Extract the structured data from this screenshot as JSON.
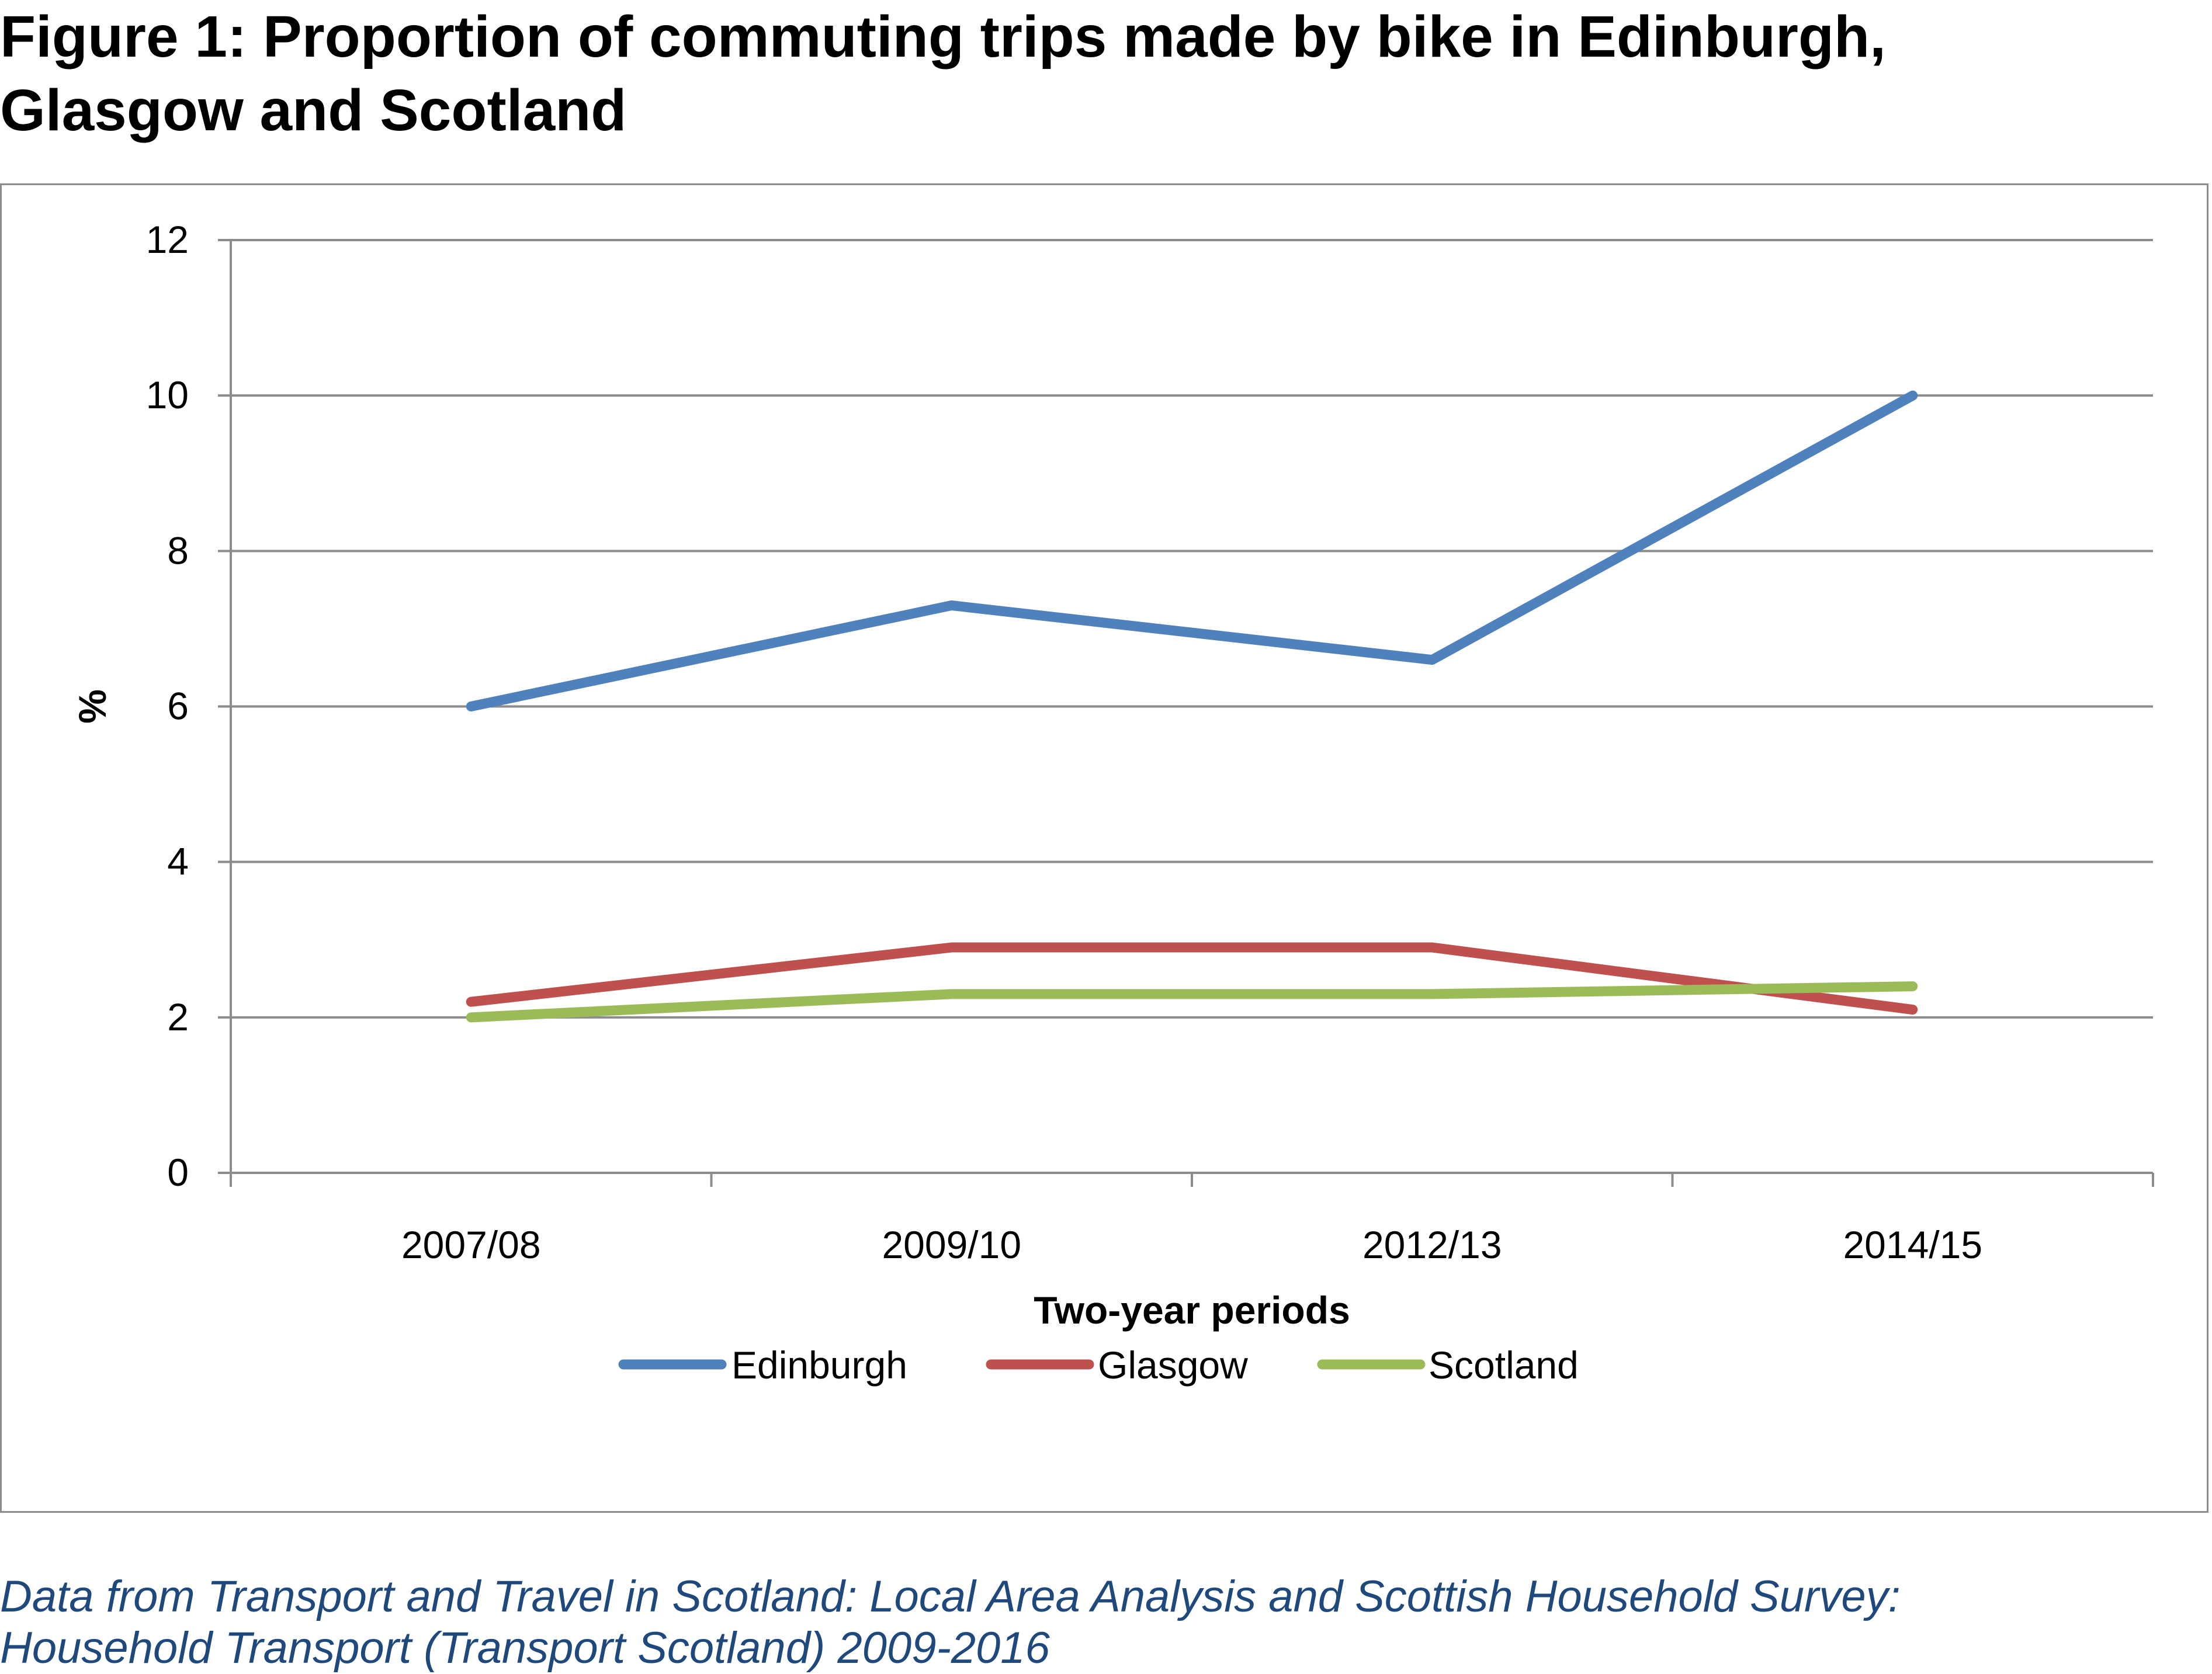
{
  "title": {
    "line1": "Figure 1: Proportion of commuting trips made by bike in Edinburgh,",
    "line2": "Glasgow and Scotland"
  },
  "source": {
    "line1": "Data from Transport and Travel in Scotland: Local Area Analysis and Scottish Household Survey:",
    "line2": "Household Transport (Transport Scotland) 2009-2016"
  },
  "colors": {
    "title_text": "#000000",
    "source_text": "#1f497d",
    "gridline": "#8c8c8c",
    "frame": "#8c8c8c"
  },
  "chart_data": {
    "type": "line",
    "title": "",
    "xlabel": "Two-year periods",
    "ylabel": "%",
    "categories": [
      "2007/08",
      "2009/10",
      "2012/13",
      "2014/15"
    ],
    "ylim": [
      0,
      12
    ],
    "yticks": [
      0,
      2,
      4,
      6,
      8,
      10,
      12
    ],
    "grid": true,
    "legend_position": "bottom",
    "series": [
      {
        "name": "Edinburgh",
        "color": "#4f81bd",
        "values": [
          6.0,
          7.3,
          6.6,
          10.0
        ]
      },
      {
        "name": "Glasgow",
        "color": "#c0504d",
        "values": [
          2.2,
          2.9,
          2.9,
          2.1
        ]
      },
      {
        "name": "Scotland",
        "color": "#9bbb59",
        "values": [
          2.0,
          2.3,
          2.3,
          2.4
        ]
      }
    ]
  }
}
